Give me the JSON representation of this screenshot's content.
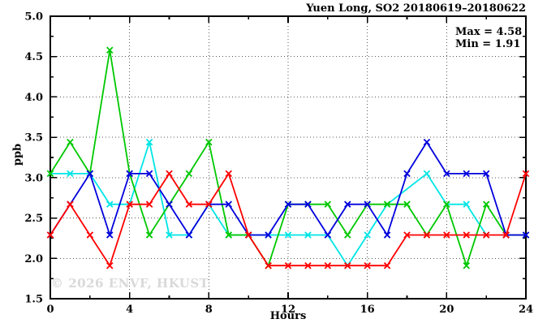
{
  "title": "Yuen Long, SO2 20180619–20180622",
  "annotations": {
    "max_label": "Max = 4.58",
    "min_label": "Min = 1.91"
  },
  "watermark": "© 2026 ENVF, HKUST",
  "chart_data": {
    "type": "line",
    "title": "Yuen Long, SO2 20180619–20180622",
    "xlabel": "Hours",
    "ylabel": "ppb",
    "xlim": [
      0,
      24
    ],
    "ylim": [
      1.5,
      5.0
    ],
    "x_major_ticks": [
      0,
      4,
      8,
      12,
      16,
      20,
      24
    ],
    "x_tick_labels": [
      "0",
      "4",
      "8",
      "12",
      "16",
      "20",
      "24"
    ],
    "x_minor_step": 2,
    "y_major_ticks": [
      1.5,
      2.0,
      2.5,
      3.0,
      3.5,
      4.0,
      4.5,
      5.0
    ],
    "y_tick_labels": [
      "1.5",
      "2.0",
      "2.5",
      "3.0",
      "3.5",
      "4.0",
      "4.5",
      "5.0"
    ],
    "y_minor_step": 0.25,
    "grid": {
      "x_at": [
        4,
        8,
        12,
        16,
        20
      ],
      "y_at": [
        2.0,
        2.5,
        3.0,
        3.5,
        4.0,
        4.5
      ]
    },
    "legend": "none",
    "max": 4.58,
    "min": 1.91,
    "x": [
      0,
      1,
      2,
      3,
      4,
      5,
      6,
      7,
      8,
      9,
      10,
      11,
      12,
      13,
      14,
      15,
      16,
      17,
      18,
      19,
      20,
      21,
      22,
      23,
      24
    ],
    "series": [
      {
        "name": "cyan-line",
        "color": "#00e5e5",
        "values": [
          3.05,
          3.05,
          3.05,
          2.67,
          2.67,
          3.44,
          2.29,
          2.29,
          2.67,
          2.29,
          2.29,
          2.29,
          2.29,
          2.29,
          2.29,
          1.91,
          2.29,
          2.67,
          null,
          3.05,
          2.67,
          2.67,
          2.29,
          null,
          null
        ]
      },
      {
        "name": "green-line",
        "color": "#00c800",
        "values": [
          3.05,
          3.44,
          3.05,
          4.58,
          3.05,
          2.29,
          2.67,
          3.05,
          3.44,
          2.29,
          2.29,
          1.91,
          2.67,
          2.67,
          2.67,
          2.29,
          2.67,
          2.67,
          2.67,
          2.29,
          2.67,
          1.91,
          2.67,
          2.29,
          2.29
        ]
      },
      {
        "name": "blue-line",
        "color": "#0000dd",
        "values": [
          2.29,
          2.67,
          3.05,
          2.29,
          3.05,
          3.05,
          2.67,
          2.29,
          2.67,
          2.67,
          2.29,
          2.29,
          2.67,
          2.67,
          2.29,
          2.67,
          2.67,
          2.29,
          3.05,
          3.44,
          3.05,
          3.05,
          3.05,
          2.29,
          2.29
        ]
      },
      {
        "name": "red-line",
        "color": "#ff0000",
        "values": [
          2.29,
          2.67,
          2.29,
          1.91,
          2.67,
          2.67,
          3.05,
          2.67,
          2.67,
          3.05,
          2.29,
          1.91,
          1.91,
          1.91,
          1.91,
          1.91,
          1.91,
          1.91,
          2.29,
          2.29,
          2.29,
          2.29,
          2.29,
          2.29,
          3.05
        ]
      }
    ]
  }
}
